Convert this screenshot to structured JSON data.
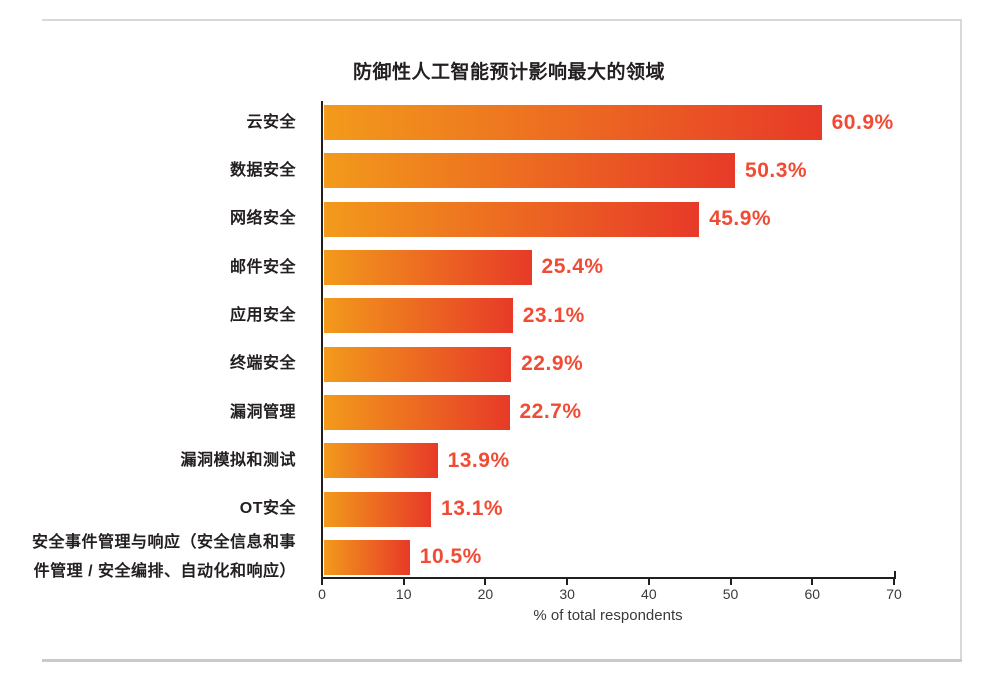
{
  "page": {
    "border_color": "#d9d9d9"
  },
  "chart_data": {
    "type": "bar",
    "orientation": "horizontal",
    "title": "防御性人工智能预计影响最大的领域",
    "xlabel": "% of total respondents",
    "xlim": [
      0,
      70
    ],
    "xticks": [
      0,
      10,
      20,
      30,
      40,
      50,
      60,
      70
    ],
    "grid": false,
    "legend": false,
    "categories": [
      "云安全",
      "数据安全",
      "网络安全",
      "邮件安全",
      "应用安全",
      "终端安全",
      "漏洞管理",
      "漏洞模拟和测试",
      "OT安全",
      "安全事件管理与响应（安全信息和事\n件管理 / 安全编排、自动化和响应）"
    ],
    "values": [
      60.9,
      50.3,
      45.9,
      25.4,
      23.1,
      22.9,
      22.7,
      13.9,
      13.1,
      10.5
    ],
    "value_labels": [
      "60.9%",
      "50.3%",
      "45.9%",
      "25.4%",
      "23.1%",
      "22.9%",
      "22.7%",
      "13.9%",
      "13.1%",
      "10.5%"
    ],
    "bar_gradient_start": "#f29a1b",
    "bar_gradient_end": "#e73a28",
    "value_label_color": "#f04c35",
    "axis_color": "#231f20"
  }
}
